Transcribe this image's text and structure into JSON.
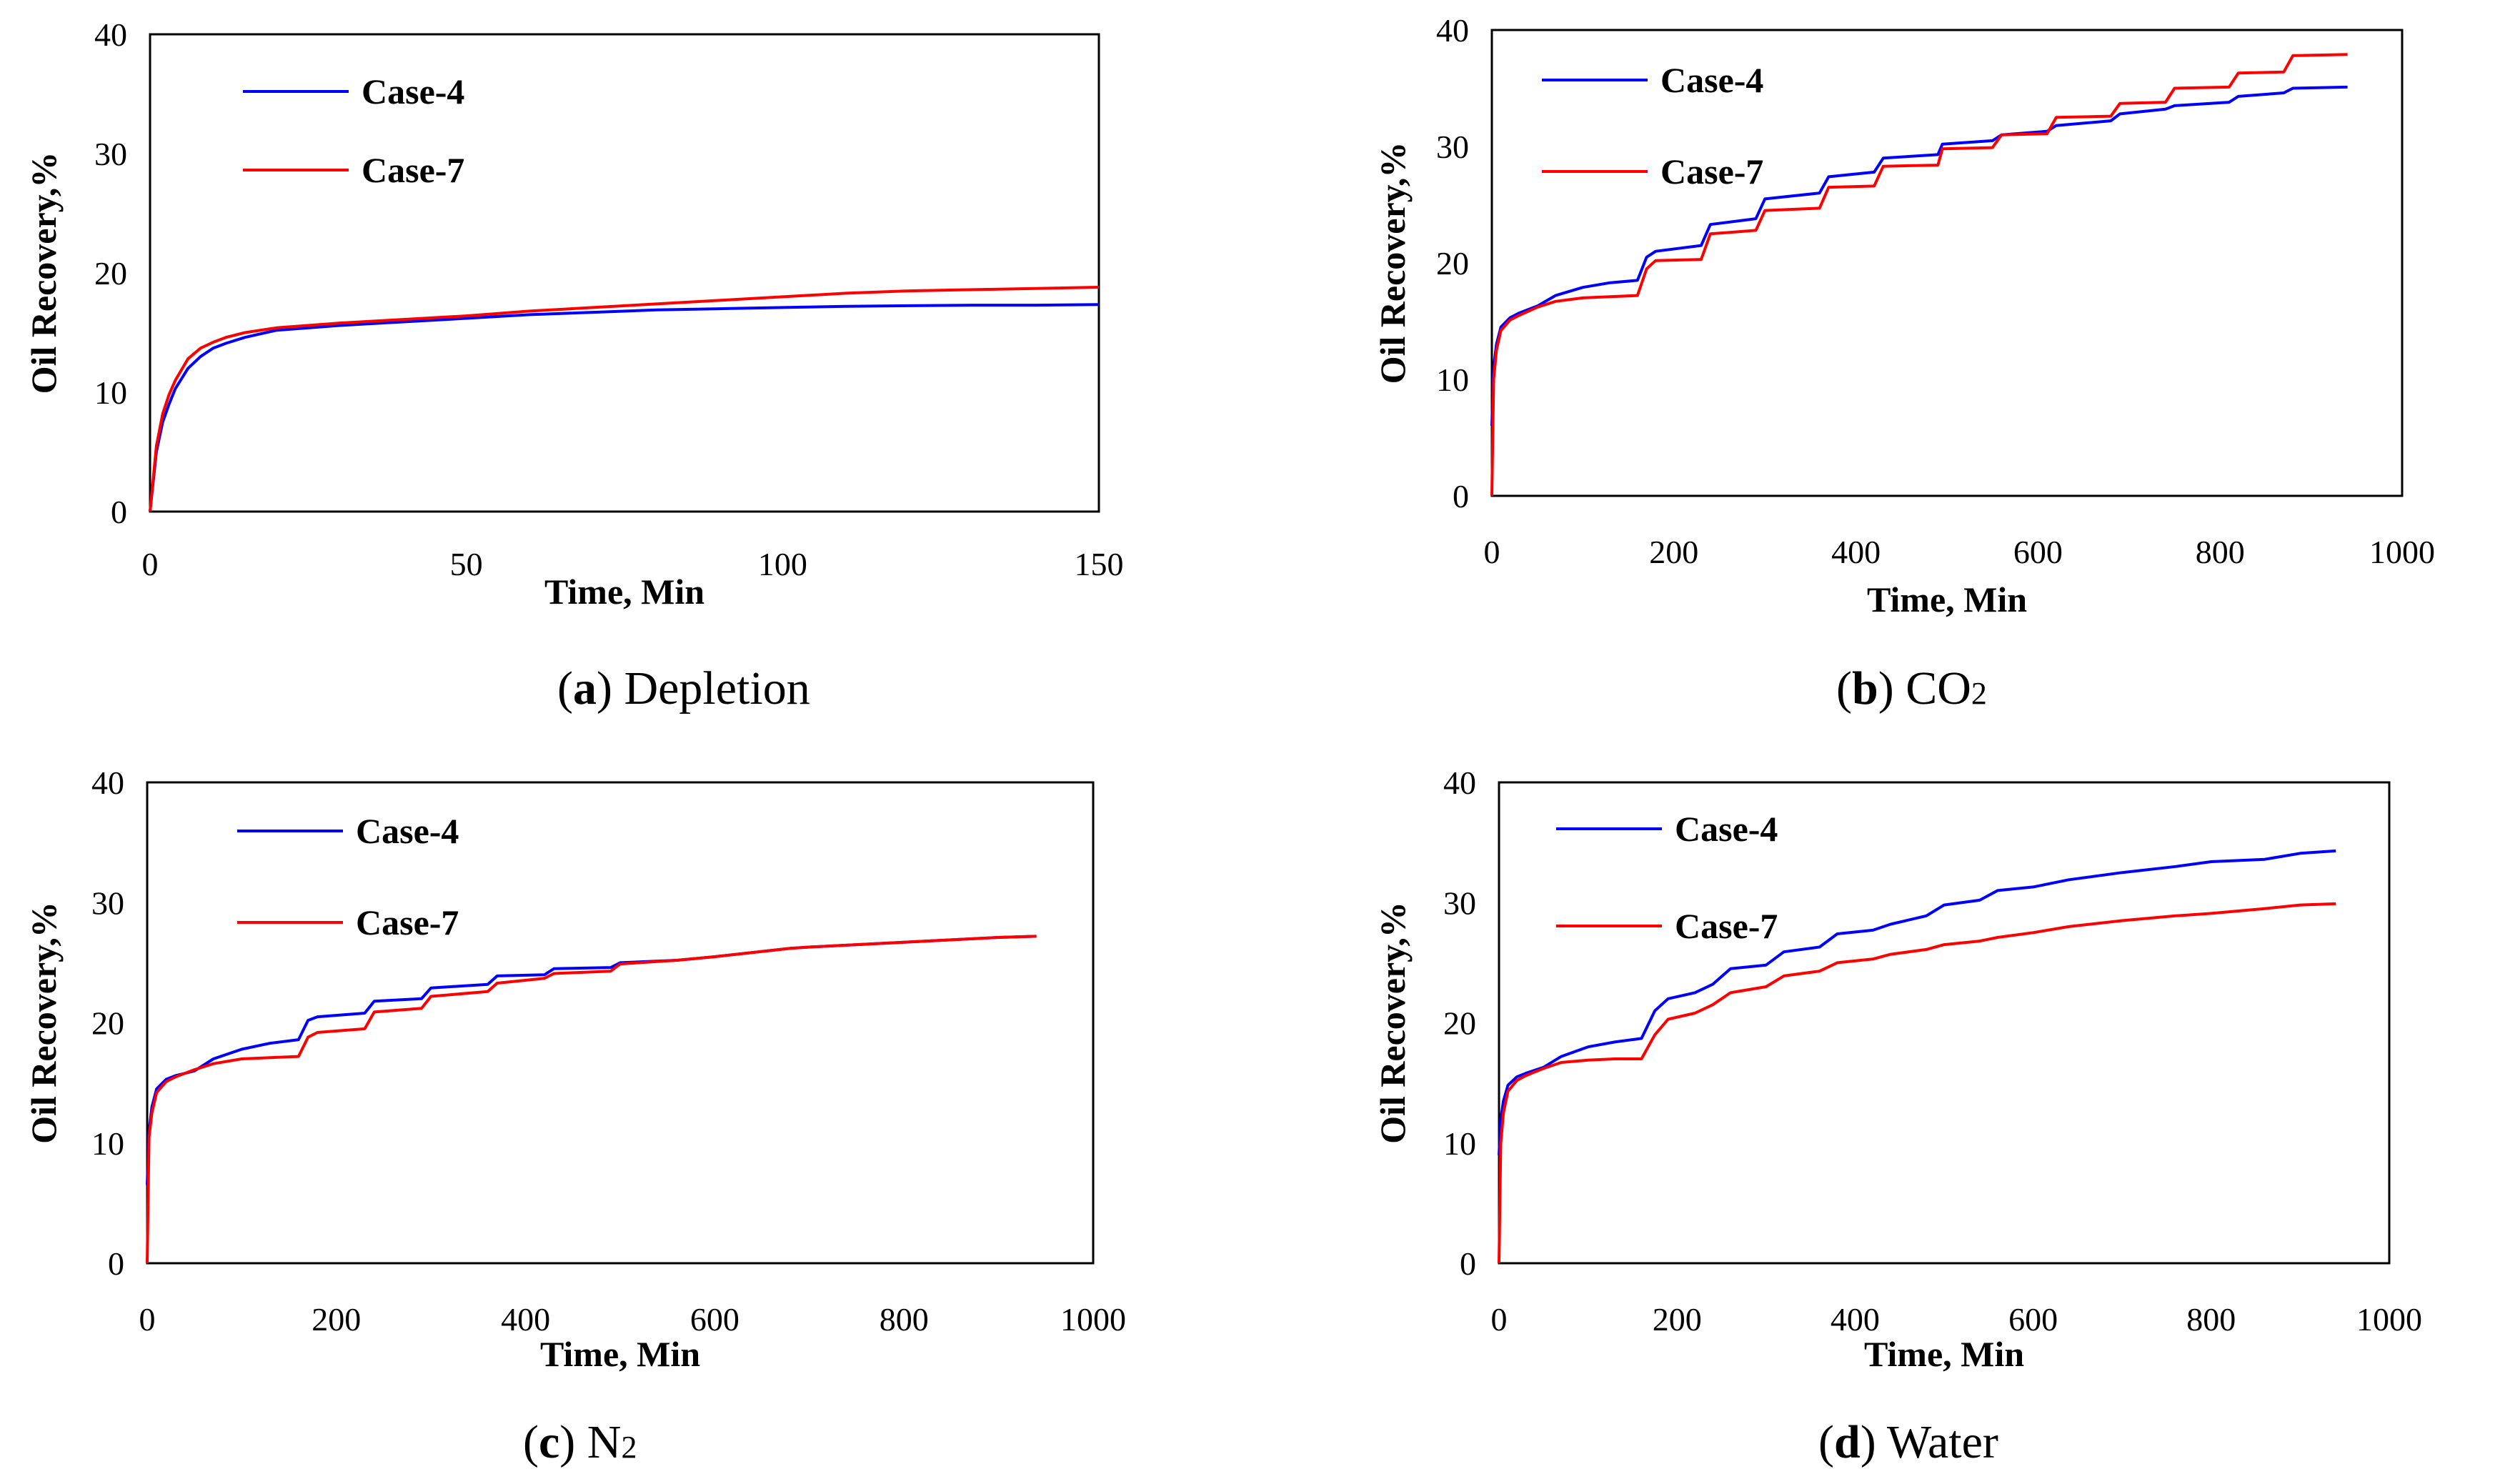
{
  "chart_data": [
    {
      "type": "line",
      "id": "a",
      "caption_letter": "a",
      "caption_text": "Depletion",
      "caption_sub": "",
      "xlabel": "Time, Min",
      "ylabel": "Oil Recovery,%",
      "xlim": [
        0,
        150
      ],
      "ylim": [
        0,
        40
      ],
      "xticks": [
        0,
        50,
        100,
        150
      ],
      "yticks": [
        0,
        10,
        20,
        30,
        40
      ],
      "series": [
        {
          "name": "Case-4",
          "color": "#0000ff",
          "x": [
            0,
            1,
            2,
            3,
            4,
            6,
            8,
            10,
            12,
            15,
            20,
            30,
            40,
            50,
            60,
            70,
            80,
            90,
            100,
            110,
            120,
            130,
            140,
            150
          ],
          "y": [
            0,
            5,
            7.5,
            9,
            10.3,
            12,
            13,
            13.7,
            14.1,
            14.6,
            15.2,
            15.6,
            15.9,
            16.2,
            16.5,
            16.7,
            16.9,
            17.0,
            17.1,
            17.2,
            17.25,
            17.3,
            17.3,
            17.35
          ]
        },
        {
          "name": "Case-7",
          "color": "#ff0000",
          "x": [
            0,
            1,
            2,
            3,
            4,
            6,
            8,
            10,
            12,
            15,
            20,
            30,
            40,
            50,
            60,
            70,
            80,
            90,
            100,
            110,
            120,
            130,
            140,
            150
          ],
          "y": [
            0,
            5.5,
            8.2,
            9.8,
            11,
            12.8,
            13.7,
            14.2,
            14.6,
            15,
            15.4,
            15.8,
            16.1,
            16.4,
            16.8,
            17.1,
            17.4,
            17.7,
            18.0,
            18.3,
            18.5,
            18.6,
            18.7,
            18.8
          ]
        }
      ]
    },
    {
      "type": "line",
      "id": "b",
      "caption_letter": "b",
      "caption_text": "CO",
      "caption_sub": "2",
      "xlabel": "Time, Min",
      "ylabel": "Oil Recovery,%",
      "xlim": [
        0,
        1000
      ],
      "ylim": [
        0,
        40
      ],
      "xticks": [
        0,
        200,
        400,
        600,
        800,
        1000
      ],
      "yticks": [
        0,
        10,
        20,
        30,
        40
      ],
      "series": [
        {
          "name": "Case-4",
          "color": "#0000ff",
          "x": [
            0,
            2,
            5,
            10,
            20,
            30,
            50,
            70,
            100,
            130,
            160,
            170,
            180,
            230,
            240,
            290,
            300,
            360,
            370,
            420,
            430,
            490,
            495,
            550,
            560,
            610,
            620,
            680,
            690,
            740,
            750,
            810,
            820,
            870,
            880,
            940
          ],
          "y": [
            6,
            11,
            13,
            14.5,
            15.3,
            15.7,
            16.3,
            17.2,
            17.9,
            18.3,
            18.5,
            20.5,
            21,
            21.5,
            23.3,
            23.8,
            25.5,
            26,
            27.4,
            27.8,
            29,
            29.3,
            30.2,
            30.5,
            31,
            31.3,
            31.8,
            32.2,
            32.8,
            33.2,
            33.5,
            33.8,
            34.3,
            34.6,
            35,
            35.1
          ]
        },
        {
          "name": "Case-7",
          "color": "#ff0000",
          "x": [
            0,
            2,
            5,
            10,
            20,
            30,
            50,
            70,
            100,
            130,
            160,
            170,
            180,
            230,
            240,
            290,
            300,
            360,
            370,
            420,
            430,
            490,
            495,
            550,
            560,
            610,
            620,
            680,
            690,
            740,
            750,
            810,
            820,
            870,
            880,
            940
          ],
          "y": [
            0,
            10,
            12.5,
            14.2,
            15.1,
            15.5,
            16.2,
            16.7,
            17,
            17.1,
            17.2,
            19.5,
            20.2,
            20.3,
            22.5,
            22.8,
            24.5,
            24.7,
            26.5,
            26.6,
            28.3,
            28.4,
            29.8,
            29.9,
            31,
            31.1,
            32.5,
            32.6,
            33.7,
            33.8,
            35,
            35.1,
            36.3,
            36.4,
            37.8,
            37.9
          ]
        }
      ]
    },
    {
      "type": "line",
      "id": "c",
      "caption_letter": "c",
      "caption_text": "N",
      "caption_sub": "2",
      "xlabel": "Time, Min",
      "ylabel": "Oil Recovery,%",
      "xlim": [
        0,
        1000
      ],
      "ylim": [
        0,
        40
      ],
      "xticks": [
        0,
        200,
        400,
        600,
        800,
        1000
      ],
      "yticks": [
        0,
        10,
        20,
        30,
        40
      ],
      "series": [
        {
          "name": "Case-4",
          "color": "#0000ff",
          "x": [
            0,
            2,
            5,
            10,
            20,
            30,
            50,
            70,
            100,
            130,
            160,
            170,
            180,
            230,
            240,
            290,
            300,
            360,
            370,
            420,
            430,
            490,
            500,
            560,
            600,
            680,
            700,
            800,
            900,
            940
          ],
          "y": [
            6.5,
            11,
            13,
            14.5,
            15.3,
            15.6,
            16,
            17,
            17.8,
            18.3,
            18.6,
            20.2,
            20.5,
            20.8,
            21.8,
            22,
            22.9,
            23.2,
            23.9,
            24,
            24.5,
            24.6,
            25,
            25.2,
            25.5,
            26.2,
            26.3,
            26.7,
            27.1,
            27.2
          ]
        },
        {
          "name": "Case-7",
          "color": "#ff0000",
          "x": [
            0,
            2,
            5,
            10,
            20,
            30,
            50,
            70,
            100,
            130,
            160,
            170,
            180,
            230,
            240,
            290,
            300,
            360,
            370,
            420,
            430,
            490,
            500,
            560,
            600,
            680,
            700,
            800,
            900,
            940
          ],
          "y": [
            0,
            10.5,
            12.5,
            14.2,
            15.1,
            15.5,
            16.1,
            16.6,
            17,
            17.1,
            17.2,
            18.8,
            19.2,
            19.5,
            20.9,
            21.2,
            22.2,
            22.6,
            23.3,
            23.7,
            24.1,
            24.3,
            24.9,
            25.2,
            25.5,
            26.2,
            26.3,
            26.7,
            27.1,
            27.2
          ]
        }
      ]
    },
    {
      "type": "line",
      "id": "d",
      "caption_letter": "d",
      "caption_text": "Water",
      "caption_sub": "",
      "xlabel": "Time, Min",
      "ylabel": "Oil Recovery,%",
      "xlim": [
        0,
        1000
      ],
      "ylim": [
        0,
        40
      ],
      "xticks": [
        0,
        200,
        400,
        600,
        800,
        1000
      ],
      "yticks": [
        0,
        10,
        20,
        30,
        40
      ],
      "series": [
        {
          "name": "Case-4",
          "color": "#0000ff",
          "x": [
            0,
            2,
            5,
            10,
            20,
            30,
            50,
            70,
            100,
            130,
            160,
            175,
            190,
            220,
            240,
            260,
            300,
            320,
            360,
            380,
            420,
            440,
            480,
            500,
            540,
            560,
            600,
            640,
            700,
            760,
            800,
            860,
            900,
            940
          ],
          "y": [
            9,
            12,
            13.5,
            14.8,
            15.5,
            15.8,
            16.3,
            17.2,
            18,
            18.4,
            18.7,
            21,
            22,
            22.5,
            23.2,
            24.5,
            24.8,
            25.9,
            26.3,
            27.4,
            27.7,
            28.2,
            28.9,
            29.8,
            30.2,
            31,
            31.3,
            31.9,
            32.5,
            33,
            33.4,
            33.6,
            34.1,
            34.3
          ]
        },
        {
          "name": "Case-7",
          "color": "#ff0000",
          "x": [
            0,
            2,
            5,
            10,
            20,
            30,
            50,
            70,
            100,
            130,
            160,
            175,
            190,
            220,
            240,
            260,
            300,
            320,
            360,
            380,
            420,
            440,
            480,
            500,
            540,
            560,
            600,
            640,
            700,
            760,
            800,
            860,
            900,
            940
          ],
          "y": [
            0,
            10,
            12.5,
            14.3,
            15.2,
            15.6,
            16.2,
            16.7,
            16.9,
            17,
            17,
            19,
            20.3,
            20.8,
            21.5,
            22.5,
            23,
            23.9,
            24.3,
            25,
            25.3,
            25.7,
            26.1,
            26.5,
            26.8,
            27.1,
            27.5,
            28,
            28.5,
            28.9,
            29.1,
            29.5,
            29.8,
            29.9
          ]
        }
      ]
    }
  ]
}
